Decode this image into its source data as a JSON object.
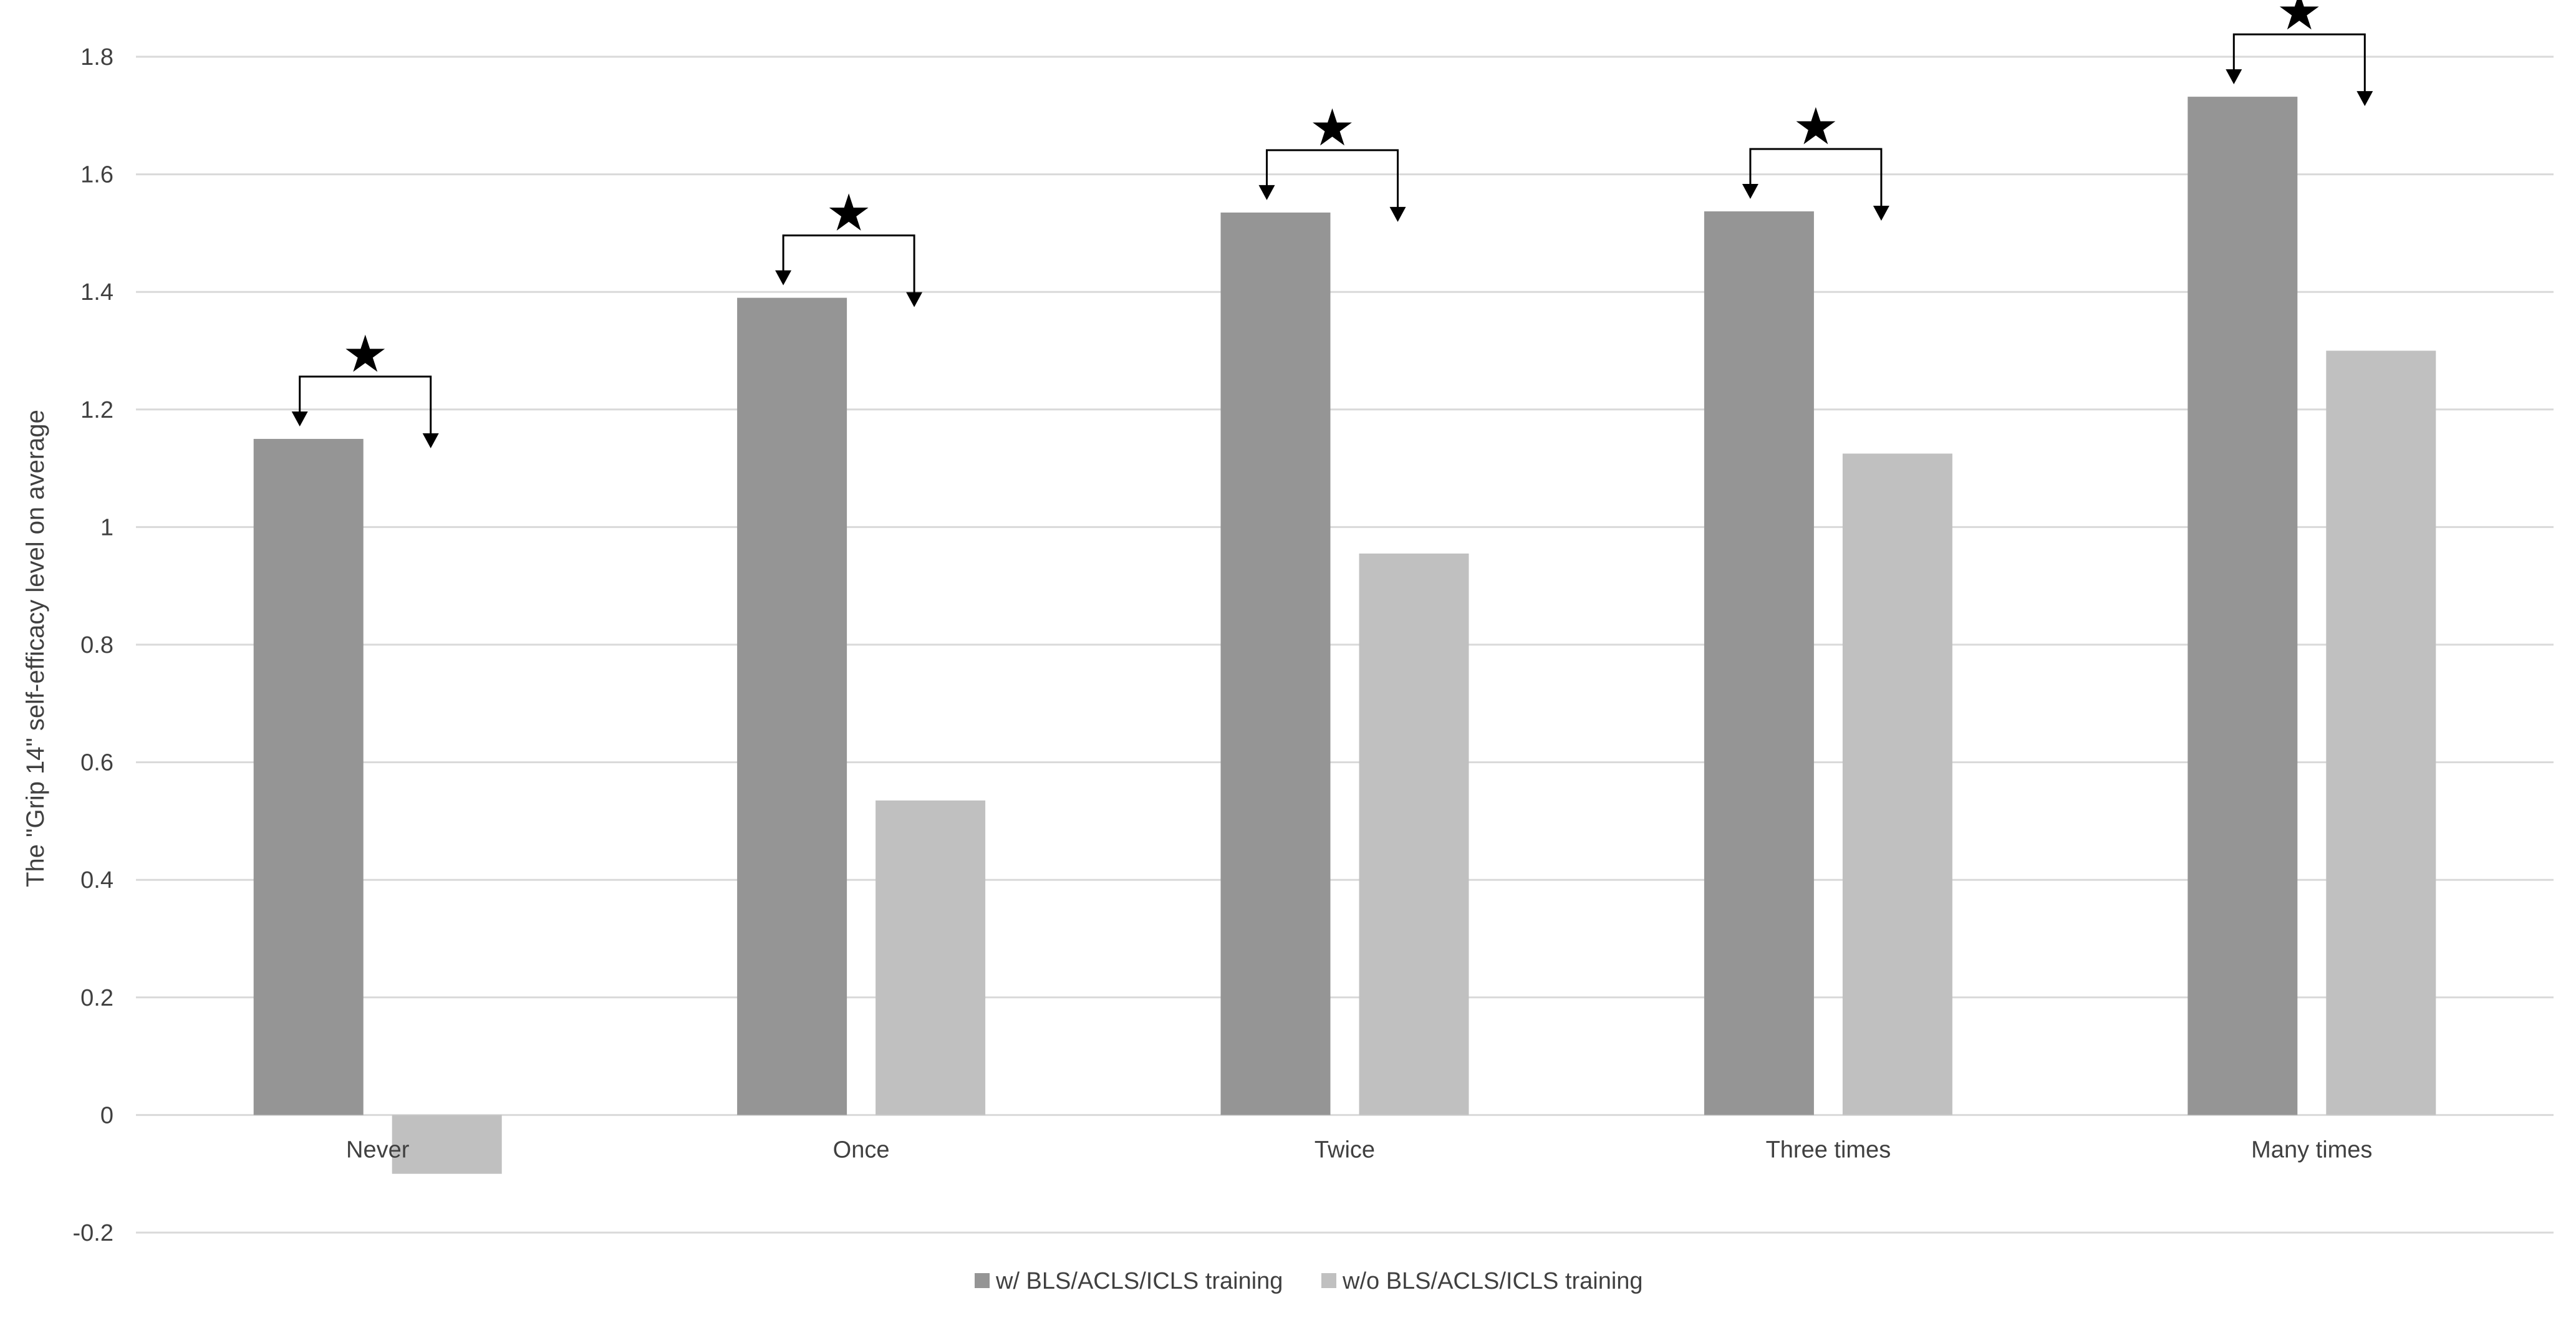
{
  "chart_data": {
    "type": "bar",
    "title": "",
    "xlabel": "",
    "ylabel": "The \"Grip 14\" self-efficacy level on average",
    "categories": [
      "Never",
      "Once",
      "Twice",
      "Three times",
      "Many times"
    ],
    "series": [
      {
        "name": "w/ BLS/ACLS/ICLS training",
        "values": [
          1.15,
          1.39,
          1.535,
          1.537,
          1.732
        ],
        "color": "#959595"
      },
      {
        "name": "w/o BLS/ACLS/ICLS training",
        "values": [
          -0.1,
          0.535,
          0.955,
          1.125,
          1.3
        ],
        "color": "#c0c0c0"
      }
    ],
    "ylim": [
      -0.2,
      1.8
    ],
    "yticks": [
      -0.2,
      0,
      0.2,
      0.4,
      0.6,
      0.8,
      1,
      1.2,
      1.4,
      1.6,
      1.8
    ],
    "ytick_labels": [
      "-0.2",
      "0",
      "0.2",
      "0.4",
      "0.6",
      "0.8",
      "1",
      "1.2",
      "1.4",
      "1.6",
      "1.8"
    ],
    "grid": true,
    "legend_position": "bottom-center",
    "annotations": {
      "significance_marker": "★",
      "marked_categories": [
        "Never",
        "Once",
        "Twice",
        "Three times",
        "Many times"
      ]
    }
  }
}
